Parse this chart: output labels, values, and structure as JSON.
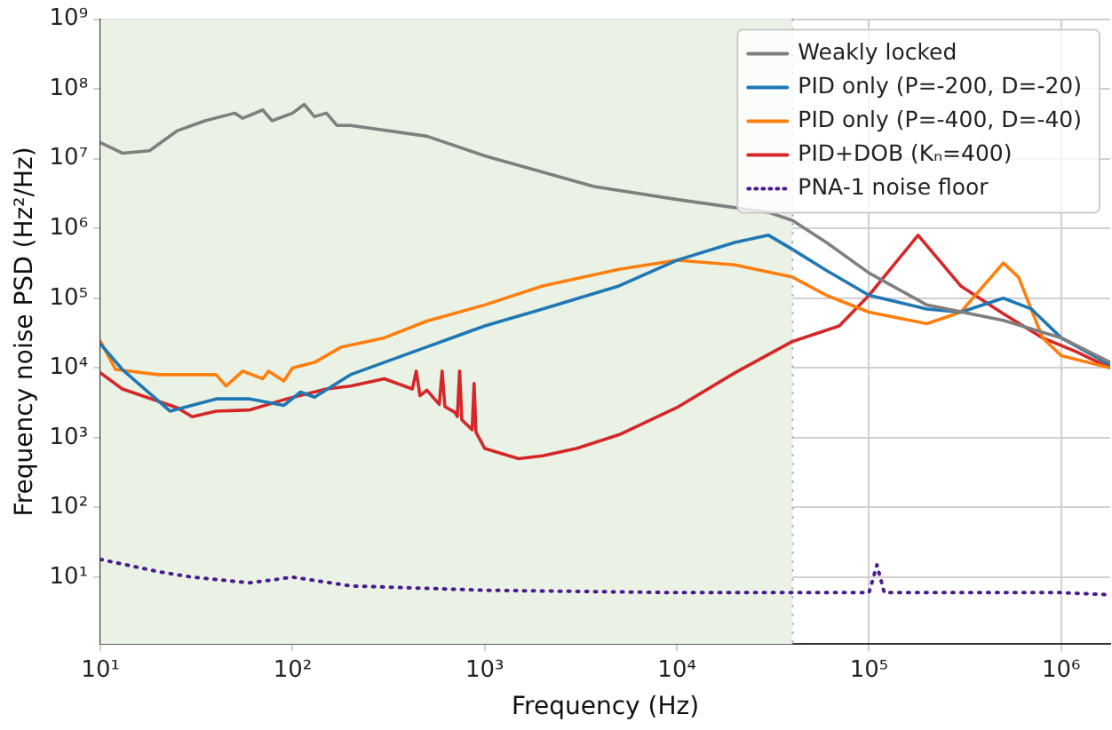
{
  "chart_data": {
    "type": "line",
    "xlabel": "Frequency (Hz)",
    "ylabel": "Frequency noise PSD (Hz²/Hz)",
    "log": "xy",
    "grid": true,
    "legend": "top right",
    "xlim": [
      10,
      1800000
    ],
    "ylim": [
      1.1,
      1000000000
    ],
    "xticks": [
      {
        "value": 10,
        "label": "10¹"
      },
      {
        "value": 100,
        "label": "10²"
      },
      {
        "value": 1000,
        "label": "10³"
      },
      {
        "value": 10000,
        "label": "10⁴"
      },
      {
        "value": 100000,
        "label": "10⁵"
      },
      {
        "value": 1000000,
        "label": "10⁶"
      }
    ],
    "yticks": [
      {
        "value": 10,
        "label": "10¹"
      },
      {
        "value": 100,
        "label": "10²"
      },
      {
        "value": 1000,
        "label": "10³"
      },
      {
        "value": 10000,
        "label": "10⁴"
      },
      {
        "value": 100000,
        "label": "10⁵"
      },
      {
        "value": 1000000,
        "label": "10⁶"
      },
      {
        "value": 10000000,
        "label": "10⁷"
      },
      {
        "value": 100000000,
        "label": "10⁸"
      },
      {
        "value": 1000000000,
        "label": "10⁹"
      }
    ],
    "bands": [
      {
        "axis": "x",
        "from": 10,
        "to": 40000,
        "color": "#e9f2e5"
      }
    ],
    "ref_lines": [
      {
        "axis": "x",
        "value": 40000,
        "color": "#a58bbf",
        "line_style": "dotted"
      }
    ],
    "series": [
      {
        "name": "Weakly locked",
        "color": "#7f7f7f",
        "x": [
          10,
          13,
          18,
          25,
          35,
          50,
          55,
          70,
          78,
          100,
          115,
          130,
          150,
          170,
          200,
          500,
          1000,
          3700,
          10000,
          30000,
          40000,
          60000,
          100000,
          200000,
          500000,
          1000000,
          1800000
        ],
        "values": [
          17000000,
          12000000,
          13000000,
          25000000,
          35000000,
          45000000,
          38000000,
          50000000,
          35000000,
          45000000,
          60000000,
          40000000,
          45000000,
          30000000,
          30000000,
          21000000,
          11000000,
          4000000,
          2600000,
          1700000,
          1300000,
          630000,
          230000,
          80000,
          48000,
          27000,
          12000
        ]
      },
      {
        "name": "PID only (P=-200, D=-20)",
        "color": "#1f77b4",
        "x": [
          10,
          13,
          23,
          40,
          60,
          90,
          110,
          130,
          200,
          500,
          1000,
          2000,
          5000,
          10000,
          20000,
          30000,
          40000,
          60000,
          100000,
          200000,
          300000,
          500000,
          700000,
          1000000,
          1800000
        ],
        "values": [
          22000,
          9500,
          2400,
          3600,
          3600,
          2900,
          4500,
          3800,
          8000,
          20000,
          40000,
          70000,
          150000,
          350000,
          630000,
          800000,
          500000,
          250000,
          110000,
          70000,
          63000,
          100000,
          70000,
          27000,
          11000
        ]
      },
      {
        "name": "PID only (P=-400, D=-40)",
        "color": "#ff7f0e",
        "x": [
          10,
          12,
          20,
          40,
          45,
          55,
          70,
          75,
          90,
          100,
          130,
          180,
          300,
          500,
          1000,
          2000,
          5000,
          10000,
          20000,
          40000,
          60000,
          100000,
          200000,
          300000,
          500000,
          600000,
          800000,
          1000000,
          1800000
        ],
        "values": [
          24000,
          9500,
          8000,
          8000,
          5500,
          9000,
          7000,
          9000,
          6500,
          10000,
          12000,
          20000,
          27000,
          47000,
          80000,
          150000,
          260000,
          350000,
          300000,
          200000,
          110000,
          63000,
          43000,
          63000,
          320000,
          200000,
          27000,
          15000,
          10000
        ]
      },
      {
        "name": "PID+DOB (Kₙ=400)",
        "color": "#d62728",
        "x": [
          10,
          13,
          25,
          30,
          40,
          60,
          90,
          150,
          200,
          300,
          420,
          440,
          460,
          500,
          580,
          600,
          620,
          700,
          720,
          740,
          760,
          860,
          880,
          900,
          1000,
          1500,
          2000,
          3000,
          5000,
          10000,
          20000,
          40000,
          70000,
          100000,
          180000,
          300000,
          500000,
          800000,
          1200000,
          1800000
        ],
        "values": [
          8500,
          5000,
          2700,
          2000,
          2400,
          2500,
          3500,
          5000,
          5500,
          7000,
          5000,
          9000,
          4000,
          4800,
          3000,
          9000,
          2800,
          2300,
          2000,
          9000,
          1800,
          1300,
          6000,
          1200,
          700,
          500,
          550,
          700,
          1100,
          2700,
          8500,
          24000,
          40000,
          110000,
          800000,
          150000,
          60000,
          27000,
          17000,
          10000
        ]
      },
      {
        "name": "PNA-1 noise floor",
        "color": "#4b1a8f",
        "line_style": "dotted",
        "x": [
          10,
          20,
          30,
          60,
          100,
          200,
          1000,
          10000,
          100000,
          110000,
          120000,
          1000000,
          1800000
        ],
        "values": [
          18,
          12,
          10,
          8.3,
          10,
          7.5,
          6.5,
          6,
          6,
          15,
          6,
          6,
          5.6
        ]
      }
    ]
  }
}
